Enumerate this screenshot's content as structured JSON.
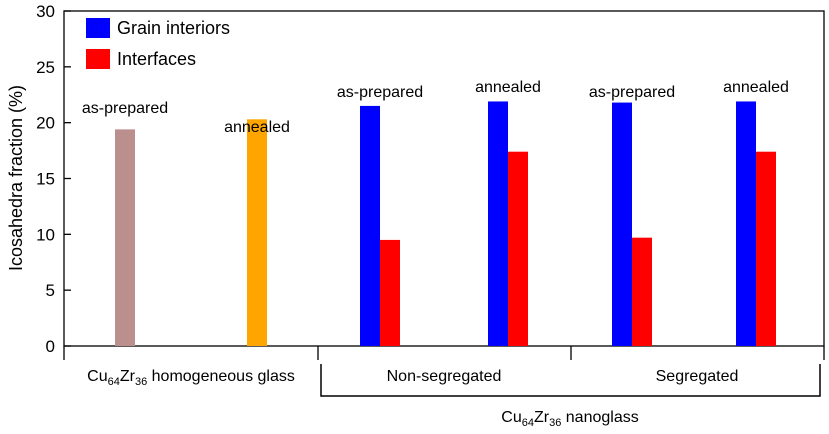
{
  "chart_data": {
    "type": "bar",
    "ylabel": "Icosahedra fraction (%)",
    "ylim": [
      0,
      30
    ],
    "yticks": [
      0,
      5,
      10,
      15,
      20,
      25,
      30
    ],
    "legend": {
      "position": "top-left",
      "entries": [
        {
          "name": "Grain interiors",
          "color": "#0000ff"
        },
        {
          "name": "Interfaces",
          "color": "#ff0000"
        }
      ]
    },
    "glass_bars": [
      {
        "label": "as-prepared",
        "value": 19.4,
        "color": "#bc8f8f"
      },
      {
        "label": "annealed",
        "value": 20.3,
        "color": "#ffa500"
      }
    ],
    "nanoglass_bars": [
      {
        "label": "as-prepared",
        "grain_interiors": 21.5,
        "interfaces": 9.5
      },
      {
        "label": "annealed",
        "grain_interiors": 21.9,
        "interfaces": 17.4
      },
      {
        "label": "as-prepared",
        "grain_interiors": 21.8,
        "interfaces": 9.7
      },
      {
        "label": "annealed",
        "grain_interiors": 21.9,
        "interfaces": 17.4
      }
    ],
    "groups": {
      "glass": {
        "base": "Cu",
        "sub1": "64",
        "mid": "Zr",
        "sub2": "36",
        "suffix": " homogeneous glass"
      },
      "non_segregated": "Non-segregated",
      "segregated": "Segregated",
      "nanoglass": {
        "base": "Cu",
        "sub1": "64",
        "mid": "Zr",
        "sub2": "36",
        "suffix": " nanoglass"
      }
    }
  }
}
